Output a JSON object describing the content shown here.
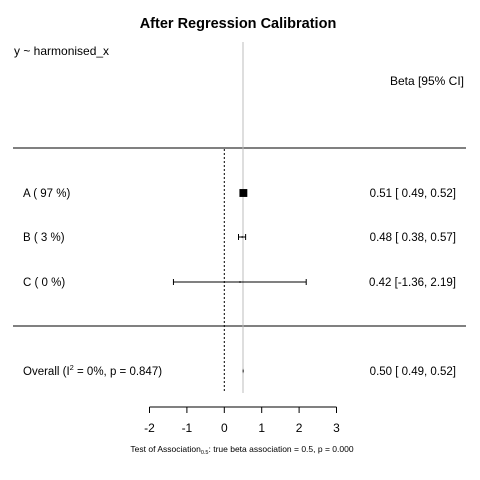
{
  "chart_data": {
    "type": "forest",
    "title": "After Regression Calibration",
    "formula": "y ~ harmonised_x",
    "column_header": "Beta [95% CI]",
    "xlim": [
      -2,
      3
    ],
    "xticks": [
      "-2",
      "-1",
      "0",
      "1",
      "2",
      "3"
    ],
    "null_value": 0,
    "true_value": 0.5,
    "studies": [
      {
        "label": "A  ( 97 %)",
        "estimate": 0.51,
        "lower": 0.49,
        "upper": 0.52,
        "weight": 97,
        "ci_text": "0.51 [ 0.49, 0.52]"
      },
      {
        "label": "B  ( 3 %)",
        "estimate": 0.48,
        "lower": 0.38,
        "upper": 0.57,
        "weight": 3,
        "ci_text": "0.48 [ 0.38, 0.57]"
      },
      {
        "label": "C  ( 0 %)",
        "estimate": 0.42,
        "lower": -1.36,
        "upper": 2.19,
        "weight": 0,
        "ci_text": "0.42 [-1.36, 2.19]"
      }
    ],
    "overall": {
      "label_pre": "Overall (I",
      "label_sup": "2",
      "label_post": " = 0%, p = 0.847)",
      "estimate": 0.5,
      "lower": 0.49,
      "upper": 0.52,
      "ci_text": "0.50 [ 0.49, 0.52]"
    },
    "footer": {
      "pre": "Test of Association",
      "sub": "0.5",
      "post": ": true beta association = 0.5, p = 0.000"
    }
  }
}
